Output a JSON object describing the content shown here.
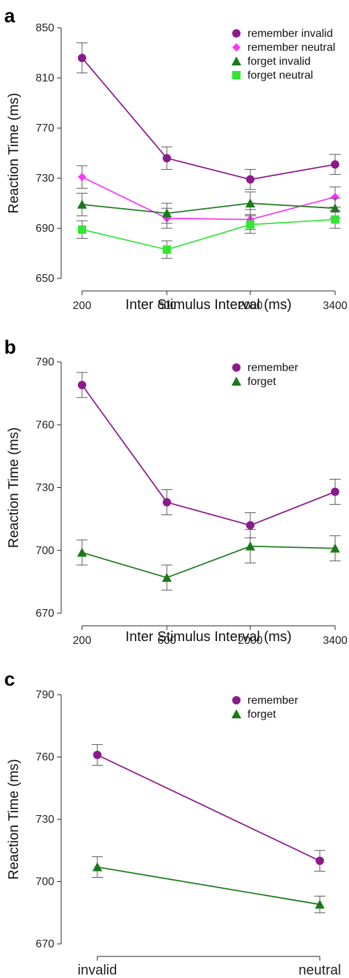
{
  "chart_data": [
    {
      "panel": "a",
      "type": "line",
      "categories": [
        "200",
        "600",
        "2000",
        "3400"
      ],
      "xlabel": "Inter Stimulus Interval (ms)",
      "ylabel": "Reaction Time (ms)",
      "ylim": [
        650,
        850
      ],
      "yticks": [
        "650",
        "690",
        "730",
        "770",
        "810",
        "850"
      ],
      "legend_position": "top-right",
      "series": [
        {
          "name": "remember invalid",
          "values": [
            826,
            746,
            729,
            741
          ],
          "err": [
            12,
            9,
            8,
            8
          ],
          "color": "#8b1a8b",
          "marker": "circle"
        },
        {
          "name": "remember neutral",
          "values": [
            731,
            698,
            697,
            715
          ],
          "err": [
            9,
            8,
            8,
            8
          ],
          "color": "#ff33ff",
          "marker": "diamond"
        },
        {
          "name": "forget invalid",
          "values": [
            709,
            702,
            710,
            706
          ],
          "err": [
            9,
            8,
            9,
            8
          ],
          "color": "#1a7a1a",
          "marker": "triangle"
        },
        {
          "name": "forget neutral",
          "values": [
            689,
            673,
            693,
            697
          ],
          "err": [
            7,
            7,
            7,
            7
          ],
          "color": "#33e633",
          "marker": "square"
        }
      ]
    },
    {
      "panel": "b",
      "type": "line",
      "categories": [
        "200",
        "600",
        "2000",
        "3400"
      ],
      "xlabel": "Inter Stimulus Interval (ms)",
      "ylabel": "Reaction Time (ms)",
      "ylim": [
        670,
        790
      ],
      "yticks": [
        "670",
        "700",
        "730",
        "760",
        "790"
      ],
      "legend_position": "top-right",
      "series": [
        {
          "name": "remember",
          "values": [
            779,
            723,
            712,
            728
          ],
          "err": [
            6,
            6,
            6,
            6
          ],
          "color": "#8b1a8b",
          "marker": "circle"
        },
        {
          "name": "forget",
          "values": [
            699,
            687,
            702,
            701
          ],
          "err": [
            6,
            6,
            8,
            6
          ],
          "color": "#1a7a1a",
          "marker": "triangle"
        }
      ]
    },
    {
      "panel": "c",
      "type": "line",
      "categories": [
        "invalid",
        "neutral"
      ],
      "xlabel": "",
      "ylabel": "Reaction Time (ms)",
      "ylim": [
        670,
        790
      ],
      "yticks": [
        "670",
        "700",
        "730",
        "760",
        "790"
      ],
      "legend_position": "top-right",
      "series": [
        {
          "name": "remember",
          "values": [
            761,
            710
          ],
          "err": [
            5,
            5
          ],
          "color": "#8b1a8b",
          "marker": "circle"
        },
        {
          "name": "forget",
          "values": [
            707,
            689
          ],
          "err": [
            5,
            4
          ],
          "color": "#1a7a1a",
          "marker": "triangle"
        }
      ]
    }
  ]
}
